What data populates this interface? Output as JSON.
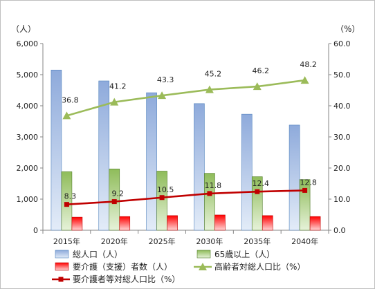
{
  "chart_data": {
    "type": "bar",
    "categories": [
      "2015年",
      "2020年",
      "2025年",
      "2030年",
      "2035年",
      "2040年"
    ],
    "left_axis": {
      "unit": "（人）",
      "ylim": [
        0,
        6000
      ],
      "ticks": [
        "0",
        "1,000",
        "2,000",
        "3,000",
        "4,000",
        "5,000",
        "6,000"
      ]
    },
    "right_axis": {
      "unit": "（%）",
      "ylim": [
        0,
        60
      ],
      "ticks": [
        "0.0",
        "10.0",
        "20.0",
        "30.0",
        "40.0",
        "50.0",
        "60.0"
      ]
    },
    "series": [
      {
        "name": "総人口（人）",
        "type": "bar",
        "axis": "left",
        "color": "#95b3d7",
        "values": [
          5150,
          4800,
          4420,
          4070,
          3730,
          3380
        ]
      },
      {
        "name": "65歳以上（人）",
        "type": "bar",
        "axis": "left",
        "color": "#9bbb59",
        "values": [
          1880,
          1970,
          1900,
          1830,
          1720,
          1630
        ]
      },
      {
        "name": "要介護（支援）者数（人）",
        "type": "bar",
        "axis": "left",
        "color": "#ff0000",
        "values": [
          420,
          440,
          470,
          490,
          470,
          440
        ]
      },
      {
        "name": "高齢者対総人口比（%）",
        "type": "line",
        "axis": "right",
        "color": "#9bbb59",
        "marker": "triangle",
        "values": [
          36.8,
          41.2,
          43.3,
          45.2,
          46.2,
          48.2
        ]
      },
      {
        "name": "要介護者等対総人口比（%）",
        "type": "line",
        "axis": "right",
        "color": "#c00000",
        "marker": "square",
        "values": [
          8.3,
          9.2,
          10.5,
          11.8,
          12.4,
          12.8
        ]
      }
    ],
    "data_labels": {
      "elderly_ratio": [
        "36.8",
        "41.2",
        "43.3",
        "45.2",
        "46.2",
        "48.2"
      ],
      "care_ratio": [
        "8.3",
        "9.2",
        "10.5",
        "11.8",
        "12.4",
        "12.8"
      ]
    },
    "grid": false,
    "legend_position": "bottom"
  }
}
